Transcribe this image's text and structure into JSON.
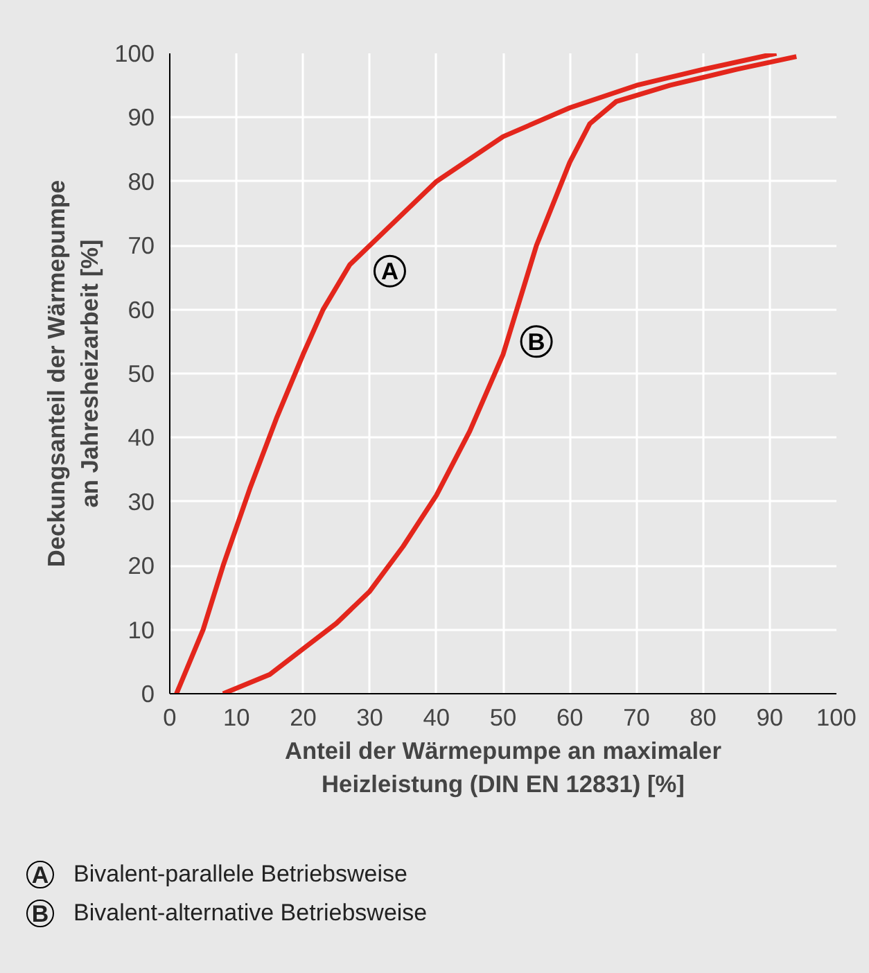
{
  "chart_data": {
    "type": "line",
    "xlabel": "Anteil der Wärmepumpe an maximaler\nHeizleistung (DIN EN 12831) [%]",
    "ylabel": "Deckungsanteil der Wärmepumpe\nan Jahresheizarbeit [%]",
    "series": [
      {
        "color": "#e3261c",
        "x": [
          1,
          5,
          8,
          12,
          16,
          20,
          23,
          27,
          32,
          40,
          50,
          60,
          70,
          80,
          91
        ],
        "values": [
          0,
          10,
          20,
          32,
          43,
          53,
          60,
          67,
          72,
          80,
          87,
          91.5,
          95,
          97.5,
          100
        ]
      },
      {
        "color": "#e3261c",
        "x": [
          8,
          15,
          20,
          25,
          30,
          35,
          40,
          45,
          50,
          55,
          60,
          63,
          67,
          75,
          85,
          94
        ],
        "values": [
          0,
          3,
          7,
          11,
          16,
          23,
          31,
          41,
          53,
          70,
          83,
          89,
          92.5,
          95,
          97.5,
          99.5
        ]
      }
    ],
    "xlim": [
      0,
      100
    ],
    "ylim": [
      0,
      100
    ],
    "xticks": [
      0,
      10,
      20,
      30,
      40,
      50,
      60,
      70,
      80,
      90,
      100
    ],
    "yticks": [
      0,
      10,
      20,
      30,
      40,
      50,
      60,
      70,
      80,
      90,
      100
    ],
    "grid": true,
    "line_style": "solid",
    "marker": "none",
    "annotations": [
      {
        "text": "A",
        "x": 33,
        "y": 66
      },
      {
        "text": "B",
        "x": 55,
        "y": 55
      },
      "Bivalent-parallele Betriebsweise",
      "Bivalent-alternative Betriebsweise"
    ]
  }
}
